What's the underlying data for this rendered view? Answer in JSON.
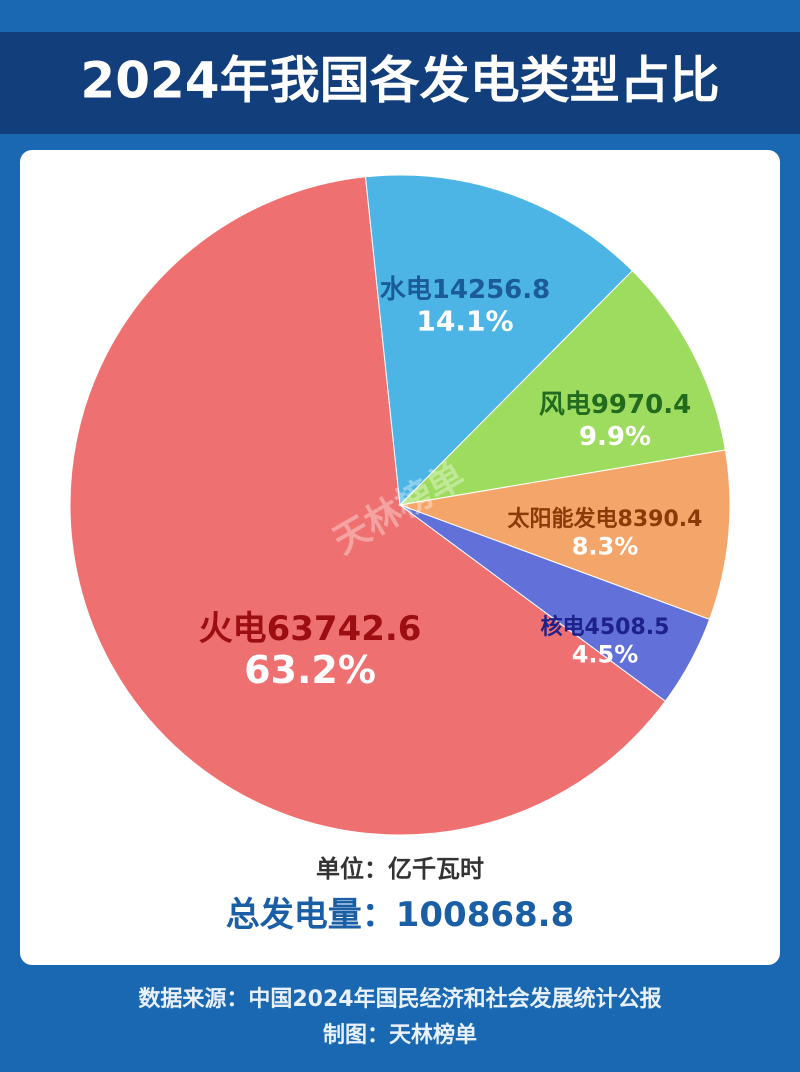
{
  "chart_data": {
    "type": "pie",
    "title": "2024年我国各发电类型占比",
    "categories": [
      "火电",
      "水电",
      "风电",
      "太阳能发电",
      "核电"
    ],
    "amounts": [
      63742.6,
      14256.8,
      9970.4,
      8390.4,
      4508.5
    ],
    "values": [
      63.2,
      14.1,
      9.9,
      8.3,
      4.5
    ],
    "value_labels": [
      "63.2%",
      "14.1%",
      "9.9%",
      "8.3%",
      "4.5%"
    ],
    "colors": [
      "#ef7070",
      "#4db5e6",
      "#9edc5f",
      "#f4a66a",
      "#6171d9"
    ],
    "label_colors": [
      "#9c0e12",
      "#1a5b98",
      "#226a1e",
      "#8a3a06",
      "#1e2189"
    ],
    "unit": "单位：亿千瓦时",
    "total_label": "总发电量：",
    "total": 100868.8,
    "watermark": "天林榜单",
    "source": "数据来源：中国2024年国民经济和社会发展统计公报",
    "credit": "制图：天林榜单"
  }
}
